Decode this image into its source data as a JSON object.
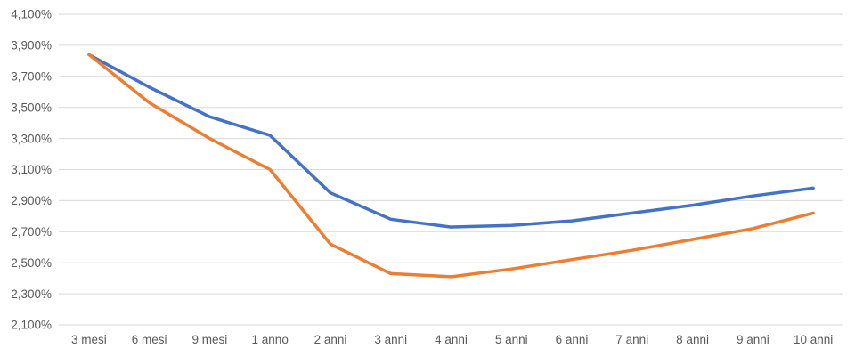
{
  "chart_data": {
    "type": "line",
    "title": "",
    "xlabel": "",
    "ylabel": "",
    "categories": [
      "3 mesi",
      "6 mesi",
      "9 mesi",
      "1 anno",
      "2 anni",
      "3 anni",
      "4 anni",
      "5 anni",
      "6 anni",
      "7 anni",
      "8 anni",
      "9 anni",
      "10 anni"
    ],
    "series": [
      {
        "name": "blue-line",
        "color": "#4472C4",
        "values": [
          3.84,
          3.63,
          3.44,
          3.32,
          2.95,
          2.78,
          2.73,
          2.74,
          2.77,
          2.82,
          2.87,
          2.93,
          2.98
        ]
      },
      {
        "name": "orange-line",
        "color": "#ED7D31",
        "values": [
          3.84,
          3.53,
          3.3,
          3.1,
          2.62,
          2.43,
          2.41,
          2.46,
          2.52,
          2.58,
          2.65,
          2.72,
          2.82
        ]
      }
    ],
    "ylim": [
      2.1,
      4.1
    ],
    "ytick_step": 0.2,
    "ytick_labels": [
      "2,100%",
      "2,300%",
      "2,500%",
      "2,700%",
      "2,900%",
      "3,100%",
      "3,300%",
      "3,500%",
      "3,700%",
      "3,900%",
      "4,100%"
    ],
    "grid": true,
    "legend": "none"
  },
  "colors": {
    "gridline": "#D9D9D9",
    "axis_text": "#595959",
    "background": "#FFFFFF",
    "series_blue": "#4472C4",
    "series_orange": "#ED7D31"
  }
}
